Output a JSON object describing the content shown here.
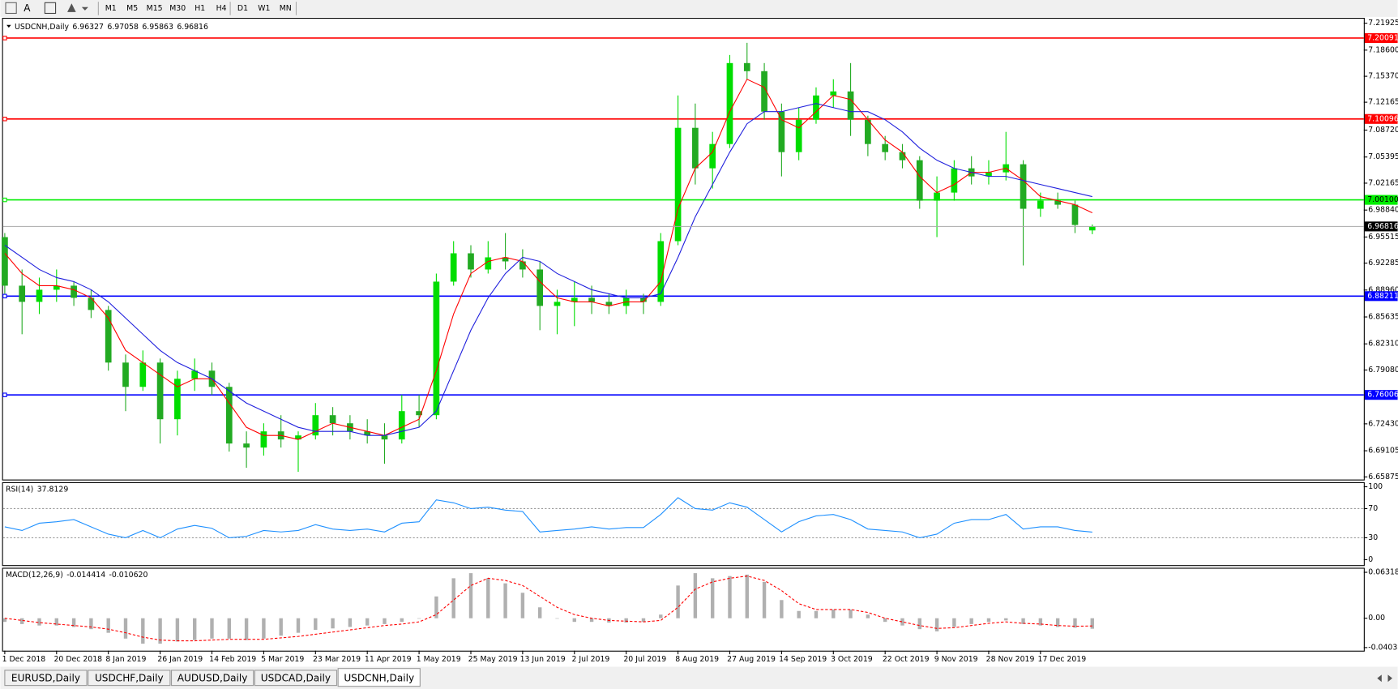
{
  "toolbar": {
    "tools": [
      "A"
    ],
    "buttons": [
      "M1",
      "M5",
      "M15",
      "M30",
      "H1",
      "H4",
      "D1",
      "W1",
      "MN"
    ]
  },
  "chart_data": [
    {
      "type": "candlestick",
      "title": "USDCNH,Daily",
      "categories": [
        "1 Dec 2018",
        null,
        null,
        "20 Dec 2018",
        null,
        null,
        "8 Jan 2019",
        null,
        null,
        "26 Jan 2019",
        null,
        null,
        "14 Feb 2019",
        null,
        null,
        "5 Mar 2019",
        null,
        null,
        "23 Mar 2019",
        null,
        null,
        "11 Apr 2019",
        null,
        null,
        "1 May 2019",
        null,
        null,
        "25 May 2019",
        null,
        null,
        "13 Jun 2019",
        null,
        null,
        "2 Jul 2019",
        null,
        null,
        "20 Jul 2019",
        null,
        null,
        "8 Aug 2019",
        null,
        null,
        "27 Aug 2019",
        null,
        null,
        "14 Sep 2019",
        null,
        null,
        "3 Oct 2019",
        null,
        null,
        "22 Oct 2019",
        null,
        null,
        "9 Nov 2019",
        null,
        null,
        "28 Nov 2019",
        null,
        null,
        "17 Dec 2019",
        null,
        null,
        null
      ],
      "open": [
        6.955,
        6.895,
        6.875,
        6.89,
        6.895,
        6.88,
        6.865,
        6.8,
        6.77,
        6.8,
        6.73,
        6.78,
        6.79,
        6.77,
        6.7,
        6.695,
        6.715,
        6.705,
        6.71,
        6.735,
        6.725,
        6.715,
        6.71,
        6.705,
        6.74,
        6.735,
        6.9,
        6.935,
        6.915,
        6.93,
        6.925,
        6.915,
        6.87,
        6.875,
        6.88,
        6.875,
        6.87,
        6.88,
        6.875,
        6.95,
        7.09,
        7.04,
        7.07,
        7.17,
        7.16,
        7.11,
        7.06,
        7.1,
        7.13,
        7.135,
        7.1,
        7.07,
        7.06,
        7.05,
        7.0,
        7.01,
        7.04,
        7.03,
        7.035,
        7.045,
        6.99,
        7.0,
        6.995,
        6.96327
      ],
      "high": [
        6.96,
        6.915,
        6.905,
        6.915,
        6.9,
        6.89,
        6.87,
        6.81,
        6.815,
        6.805,
        6.79,
        6.805,
        6.8,
        6.775,
        6.715,
        6.725,
        6.735,
        6.715,
        6.75,
        6.745,
        6.735,
        6.73,
        6.725,
        6.76,
        6.76,
        6.91,
        6.95,
        6.945,
        6.95,
        6.96,
        6.94,
        6.925,
        6.89,
        6.9,
        6.895,
        6.885,
        6.89,
        6.885,
        6.96,
        7.13,
        7.12,
        7.085,
        7.18,
        7.195,
        7.17,
        7.12,
        7.115,
        7.14,
        7.15,
        7.17,
        7.105,
        7.08,
        7.07,
        7.055,
        7.03,
        7.05,
        7.055,
        7.05,
        7.085,
        7.05,
        7.01,
        7.01,
        7.0,
        6.97058
      ],
      "low": [
        6.885,
        6.835,
        6.86,
        6.875,
        6.87,
        6.855,
        6.79,
        6.74,
        6.765,
        6.7,
        6.71,
        6.765,
        6.76,
        6.69,
        6.67,
        6.685,
        6.695,
        6.665,
        6.705,
        6.71,
        6.705,
        6.7,
        6.675,
        6.7,
        6.72,
        6.73,
        6.895,
        6.905,
        6.91,
        6.915,
        6.905,
        6.84,
        6.835,
        6.845,
        6.86,
        6.86,
        6.86,
        6.86,
        6.87,
        6.945,
        7.02,
        7.015,
        7.065,
        7.15,
        7.1,
        7.03,
        7.05,
        7.095,
        7.115,
        7.08,
        7.055,
        7.05,
        7.04,
        6.99,
        6.955,
        7.0,
        7.02,
        7.02,
        7.025,
        6.92,
        6.98,
        6.99,
        6.96,
        6.95863
      ],
      "close": [
        6.895,
        6.875,
        6.89,
        6.895,
        6.88,
        6.865,
        6.8,
        6.77,
        6.8,
        6.73,
        6.78,
        6.79,
        6.77,
        6.7,
        6.695,
        6.715,
        6.705,
        6.71,
        6.735,
        6.725,
        6.715,
        6.71,
        6.705,
        6.74,
        6.735,
        6.9,
        6.935,
        6.915,
        6.93,
        6.925,
        6.915,
        6.87,
        6.875,
        6.88,
        6.875,
        6.87,
        6.88,
        6.875,
        6.95,
        7.09,
        7.04,
        7.07,
        7.17,
        7.16,
        7.11,
        7.06,
        7.1,
        7.13,
        7.135,
        7.1,
        7.07,
        7.06,
        7.05,
        7.0,
        7.01,
        7.04,
        7.03,
        7.035,
        7.045,
        6.99,
        7.0,
        6.995,
        6.97,
        6.96816
      ],
      "up_color": "#00dd00",
      "down_color": "#22aa22",
      "series": [
        {
          "color": "#ff0000",
          "values": [
            6.935,
            6.91,
            6.895,
            6.895,
            6.89,
            6.88,
            6.855,
            6.815,
            6.8,
            6.785,
            6.77,
            6.78,
            6.78,
            6.75,
            6.72,
            6.71,
            6.71,
            6.705,
            6.715,
            6.725,
            6.72,
            6.715,
            6.71,
            6.72,
            6.73,
            6.79,
            6.86,
            6.91,
            6.925,
            6.93,
            6.925,
            6.9,
            6.88,
            6.875,
            6.875,
            6.87,
            6.875,
            6.875,
            6.9,
            6.99,
            7.04,
            7.06,
            7.11,
            7.15,
            7.14,
            7.1,
            7.09,
            7.11,
            7.13,
            7.125,
            7.1,
            7.075,
            7.06,
            7.03,
            7.01,
            7.02,
            7.035,
            7.035,
            7.04,
            7.025,
            7.005,
            7.0,
            6.995,
            6.985
          ]
        },
        {
          "color": "#2020dd",
          "values": [
            6.945,
            6.93,
            6.915,
            6.905,
            6.9,
            6.89,
            6.875,
            6.855,
            6.835,
            6.815,
            6.8,
            6.79,
            6.78,
            6.765,
            6.75,
            6.74,
            6.73,
            6.72,
            6.715,
            6.715,
            6.715,
            6.71,
            6.71,
            6.715,
            6.72,
            6.74,
            6.79,
            6.84,
            6.88,
            6.91,
            6.93,
            6.925,
            6.91,
            6.9,
            6.89,
            6.885,
            6.88,
            6.88,
            6.885,
            6.93,
            6.98,
            7.02,
            7.06,
            7.095,
            7.11,
            7.11,
            7.115,
            7.12,
            7.115,
            7.11,
            7.11,
            7.1,
            7.085,
            7.065,
            7.05,
            7.04,
            7.035,
            7.03,
            7.03,
            7.025,
            7.02,
            7.015,
            7.01,
            7.005
          ]
        }
      ],
      "hlines": [
        {
          "value": 7.20091,
          "color": "#ff0000"
        },
        {
          "value": 7.10096,
          "color": "#ff0000"
        },
        {
          "value": 7.001,
          "label": "7.00100",
          "color": "#00ee00"
        },
        {
          "value": 6.88211,
          "color": "#0000ff"
        },
        {
          "value": 6.76006,
          "color": "#0000ff"
        }
      ],
      "ylim": [
        6.6555,
        7.2259
      ],
      "yticks": [
        7.21925,
        {
          "value": 7.186,
          "label": "7.18600"
        },
        {
          "value": 7.1537,
          "label": "7.15370"
        },
        7.12165,
        {
          "value": 7.0872,
          "label": "7.08720"
        },
        7.05395,
        7.02165,
        {
          "value": 6.9884,
          "label": "6.98840"
        },
        6.95515,
        6.92285,
        {
          "value": 6.8896,
          "label": "6.88960"
        },
        6.85635,
        {
          "value": 6.8231,
          "label": "6.82310"
        },
        {
          "value": 6.7908,
          "label": "6.79080"
        },
        {
          "value": 6.7243,
          "label": "6.72430"
        },
        6.69105,
        6.65875
      ]
    },
    {
      "type": "line",
      "title": "RSI(14)",
      "series": [
        {
          "color": "#1e90ff",
          "values": [
            45,
            40,
            50,
            52,
            55,
            45,
            35,
            30,
            40,
            30,
            42,
            47,
            43,
            30,
            32,
            40,
            38,
            40,
            48,
            42,
            40,
            42,
            38,
            50,
            52,
            82,
            78,
            70,
            72,
            68,
            66,
            38,
            40,
            42,
            45,
            42,
            44,
            44,
            62,
            85,
            70,
            68,
            78,
            72,
            55,
            38,
            52,
            60,
            62,
            55,
            42,
            40,
            38,
            30,
            35,
            50,
            55,
            55,
            62,
            42,
            45,
            45,
            40,
            37.8129
          ]
        }
      ],
      "ylim": [
        -7.5,
        106.25
      ],
      "yticks": [
        100,
        70,
        30,
        0
      ],
      "levels": [
        70,
        30
      ]
    },
    {
      "type": "macd",
      "title": "MACD(12,26,9)",
      "series": [
        {
          "color": "#b0b0b0",
          "values": [
            -0.005,
            -0.008,
            -0.01,
            -0.01,
            -0.012,
            -0.015,
            -0.02,
            -0.028,
            -0.035,
            -0.035,
            -0.032,
            -0.03,
            -0.028,
            -0.028,
            -0.03,
            -0.028,
            -0.024,
            -0.02,
            -0.016,
            -0.014,
            -0.012,
            -0.01,
            -0.008,
            -0.005,
            0.0,
            0.03,
            0.055,
            0.062,
            0.055,
            0.048,
            0.035,
            0.015,
            0.0,
            -0.005,
            -0.005,
            -0.006,
            -0.006,
            -0.005,
            0.005,
            0.045,
            0.062,
            0.055,
            0.058,
            0.06,
            0.05,
            0.025,
            0.01,
            0.01,
            0.012,
            0.012,
            0.005,
            -0.005,
            -0.01,
            -0.015,
            -0.018,
            -0.012,
            -0.008,
            -0.005,
            -0.003,
            -0.008,
            -0.01,
            -0.012,
            -0.013,
            -0.014414
          ]
        },
        {
          "color": "#ff0000",
          "last_label": "-0.010620",
          "values": [
            0.0,
            -0.003,
            -0.006,
            -0.008,
            -0.01,
            -0.012,
            -0.015,
            -0.02,
            -0.026,
            -0.03,
            -0.031,
            -0.031,
            -0.03,
            -0.029,
            -0.029,
            -0.029,
            -0.027,
            -0.025,
            -0.022,
            -0.019,
            -0.016,
            -0.013,
            -0.01,
            -0.008,
            -0.005,
            0.005,
            0.025,
            0.045,
            0.055,
            0.052,
            0.045,
            0.03,
            0.015,
            0.005,
            0.0,
            -0.003,
            -0.004,
            -0.005,
            -0.003,
            0.015,
            0.04,
            0.05,
            0.055,
            0.058,
            0.052,
            0.038,
            0.02,
            0.012,
            0.012,
            0.012,
            0.008,
            0.0,
            -0.005,
            -0.01,
            -0.014,
            -0.013,
            -0.01,
            -0.007,
            -0.005,
            -0.007,
            -0.008,
            -0.01,
            -0.011,
            -0.01062
          ]
        }
      ],
      "ylim": [
        -0.0446,
        0.0694
      ],
      "yticks": [
        0.063184,
        {
          "value": 0,
          "label": "0.00"
        },
        -0.040355
      ]
    }
  ],
  "tabs": {
    "items": [
      "EURUSD,Daily",
      "USDCHF,Daily",
      "AUDUSD,Daily",
      "USDCAD,Daily",
      "USDCNH,Daily"
    ],
    "active": 4
  }
}
